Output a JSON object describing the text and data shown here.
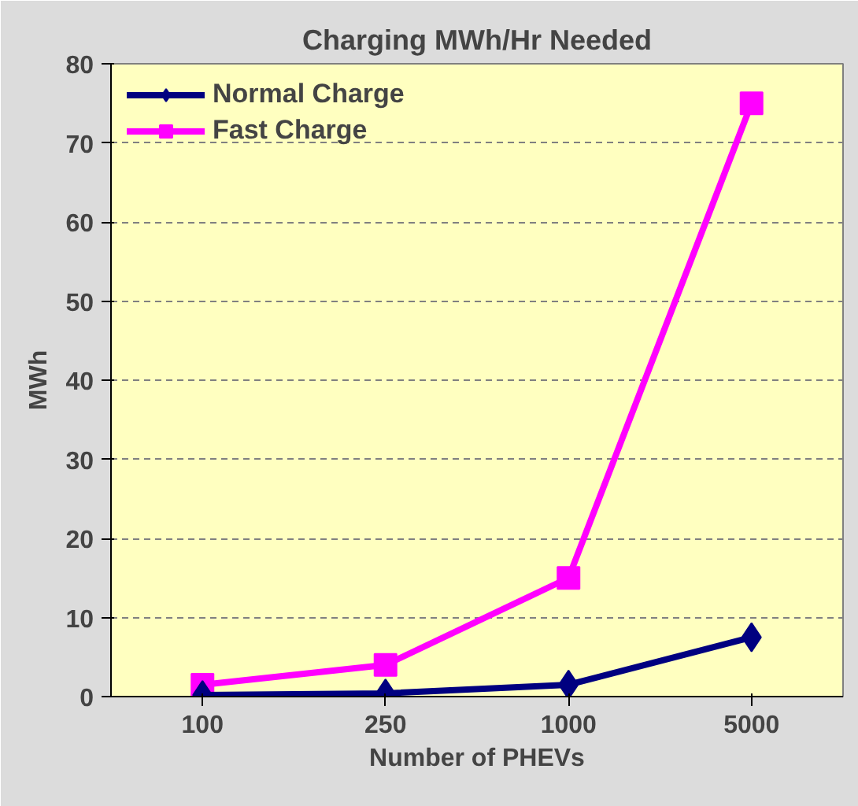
{
  "chart_data": {
    "type": "line",
    "title": "Charging MWh/Hr Needed",
    "xlabel": "Number of PHEVs",
    "ylabel": "MWh",
    "categories": [
      "100",
      "250",
      "1000",
      "5000"
    ],
    "series": [
      {
        "name": "Normal Charge",
        "color": "#000080",
        "marker": "diamond",
        "values": [
          0.2,
          0.4,
          1.5,
          7.5
        ]
      },
      {
        "name": "Fast Charge",
        "color": "#ff00ff",
        "marker": "square",
        "values": [
          1.5,
          4,
          15,
          75
        ]
      }
    ],
    "ylim": [
      0,
      80
    ],
    "yticks": [
      0,
      10,
      20,
      30,
      40,
      50,
      60,
      70,
      80
    ],
    "grid": "y",
    "legend": "top left"
  }
}
